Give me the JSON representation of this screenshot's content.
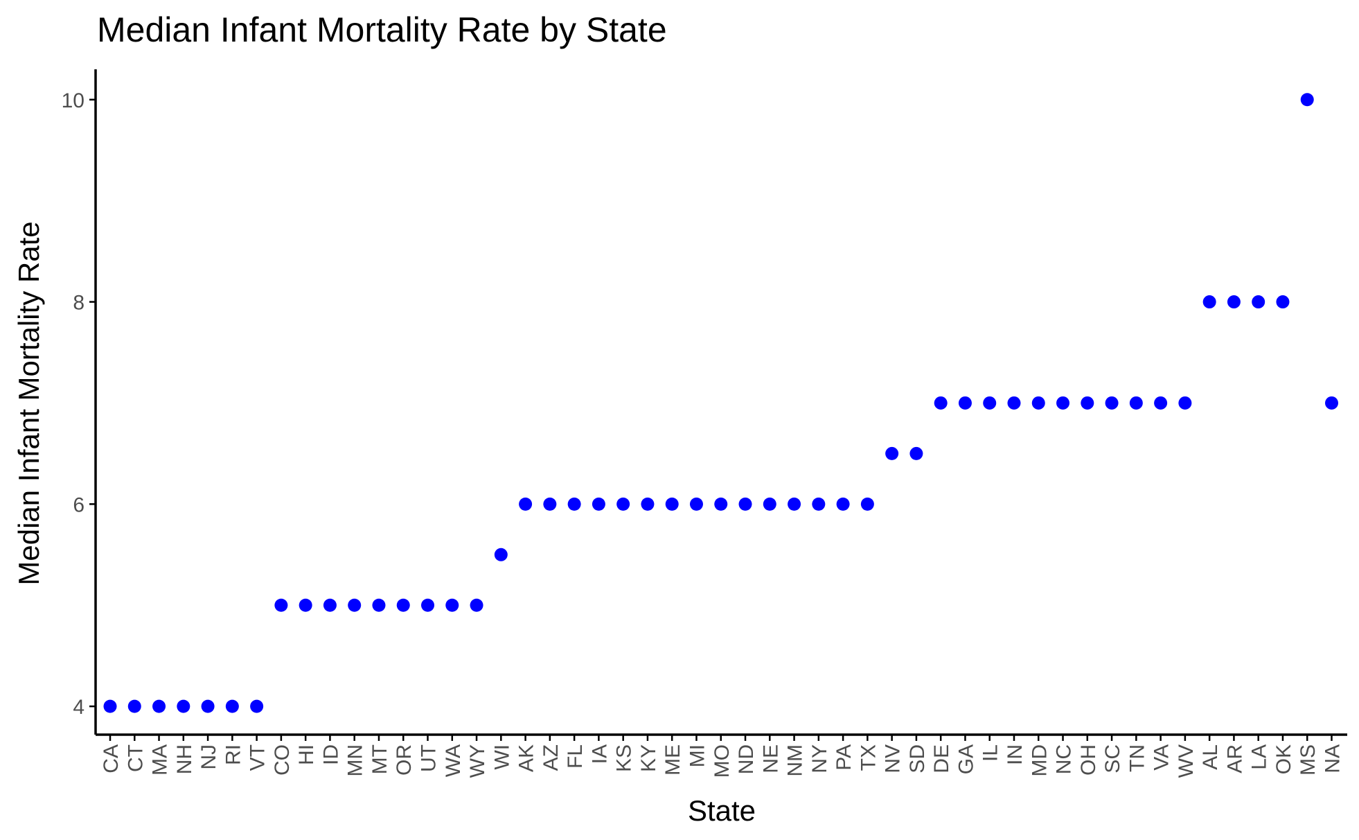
{
  "chart_data": {
    "type": "scatter",
    "title": "Median Infant Mortality Rate by State",
    "xlabel": "State",
    "ylabel": "Median Infant Mortality Rate",
    "ylim": [
      3.72,
      10.3
    ],
    "yticks": [
      4,
      6,
      8,
      10
    ],
    "grid": false,
    "legend": "none",
    "point_color": "#0000ff",
    "axis_color": "#000000",
    "tick_label_color": "#4d4d4d",
    "categories": [
      "CA",
      "CT",
      "MA",
      "NH",
      "NJ",
      "RI",
      "VT",
      "CO",
      "HI",
      "ID",
      "MN",
      "MT",
      "OR",
      "UT",
      "WA",
      "WY",
      "WI",
      "AK",
      "AZ",
      "FL",
      "IA",
      "KS",
      "KY",
      "ME",
      "MI",
      "MO",
      "ND",
      "NE",
      "NM",
      "NY",
      "PA",
      "TX",
      "NV",
      "SD",
      "DE",
      "GA",
      "IL",
      "IN",
      "MD",
      "NC",
      "OH",
      "SC",
      "TN",
      "VA",
      "WV",
      "AL",
      "AR",
      "LA",
      "OK",
      "MS",
      "NA"
    ],
    "values": [
      4,
      4,
      4,
      4,
      4,
      4,
      4,
      5,
      5,
      5,
      5,
      5,
      5,
      5,
      5,
      5,
      5.5,
      6,
      6,
      6,
      6,
      6,
      6,
      6,
      6,
      6,
      6,
      6,
      6,
      6,
      6,
      6,
      6.5,
      6.5,
      7,
      7,
      7,
      7,
      7,
      7,
      7,
      7,
      7,
      7,
      7,
      8,
      8,
      8,
      8,
      10,
      7
    ]
  }
}
